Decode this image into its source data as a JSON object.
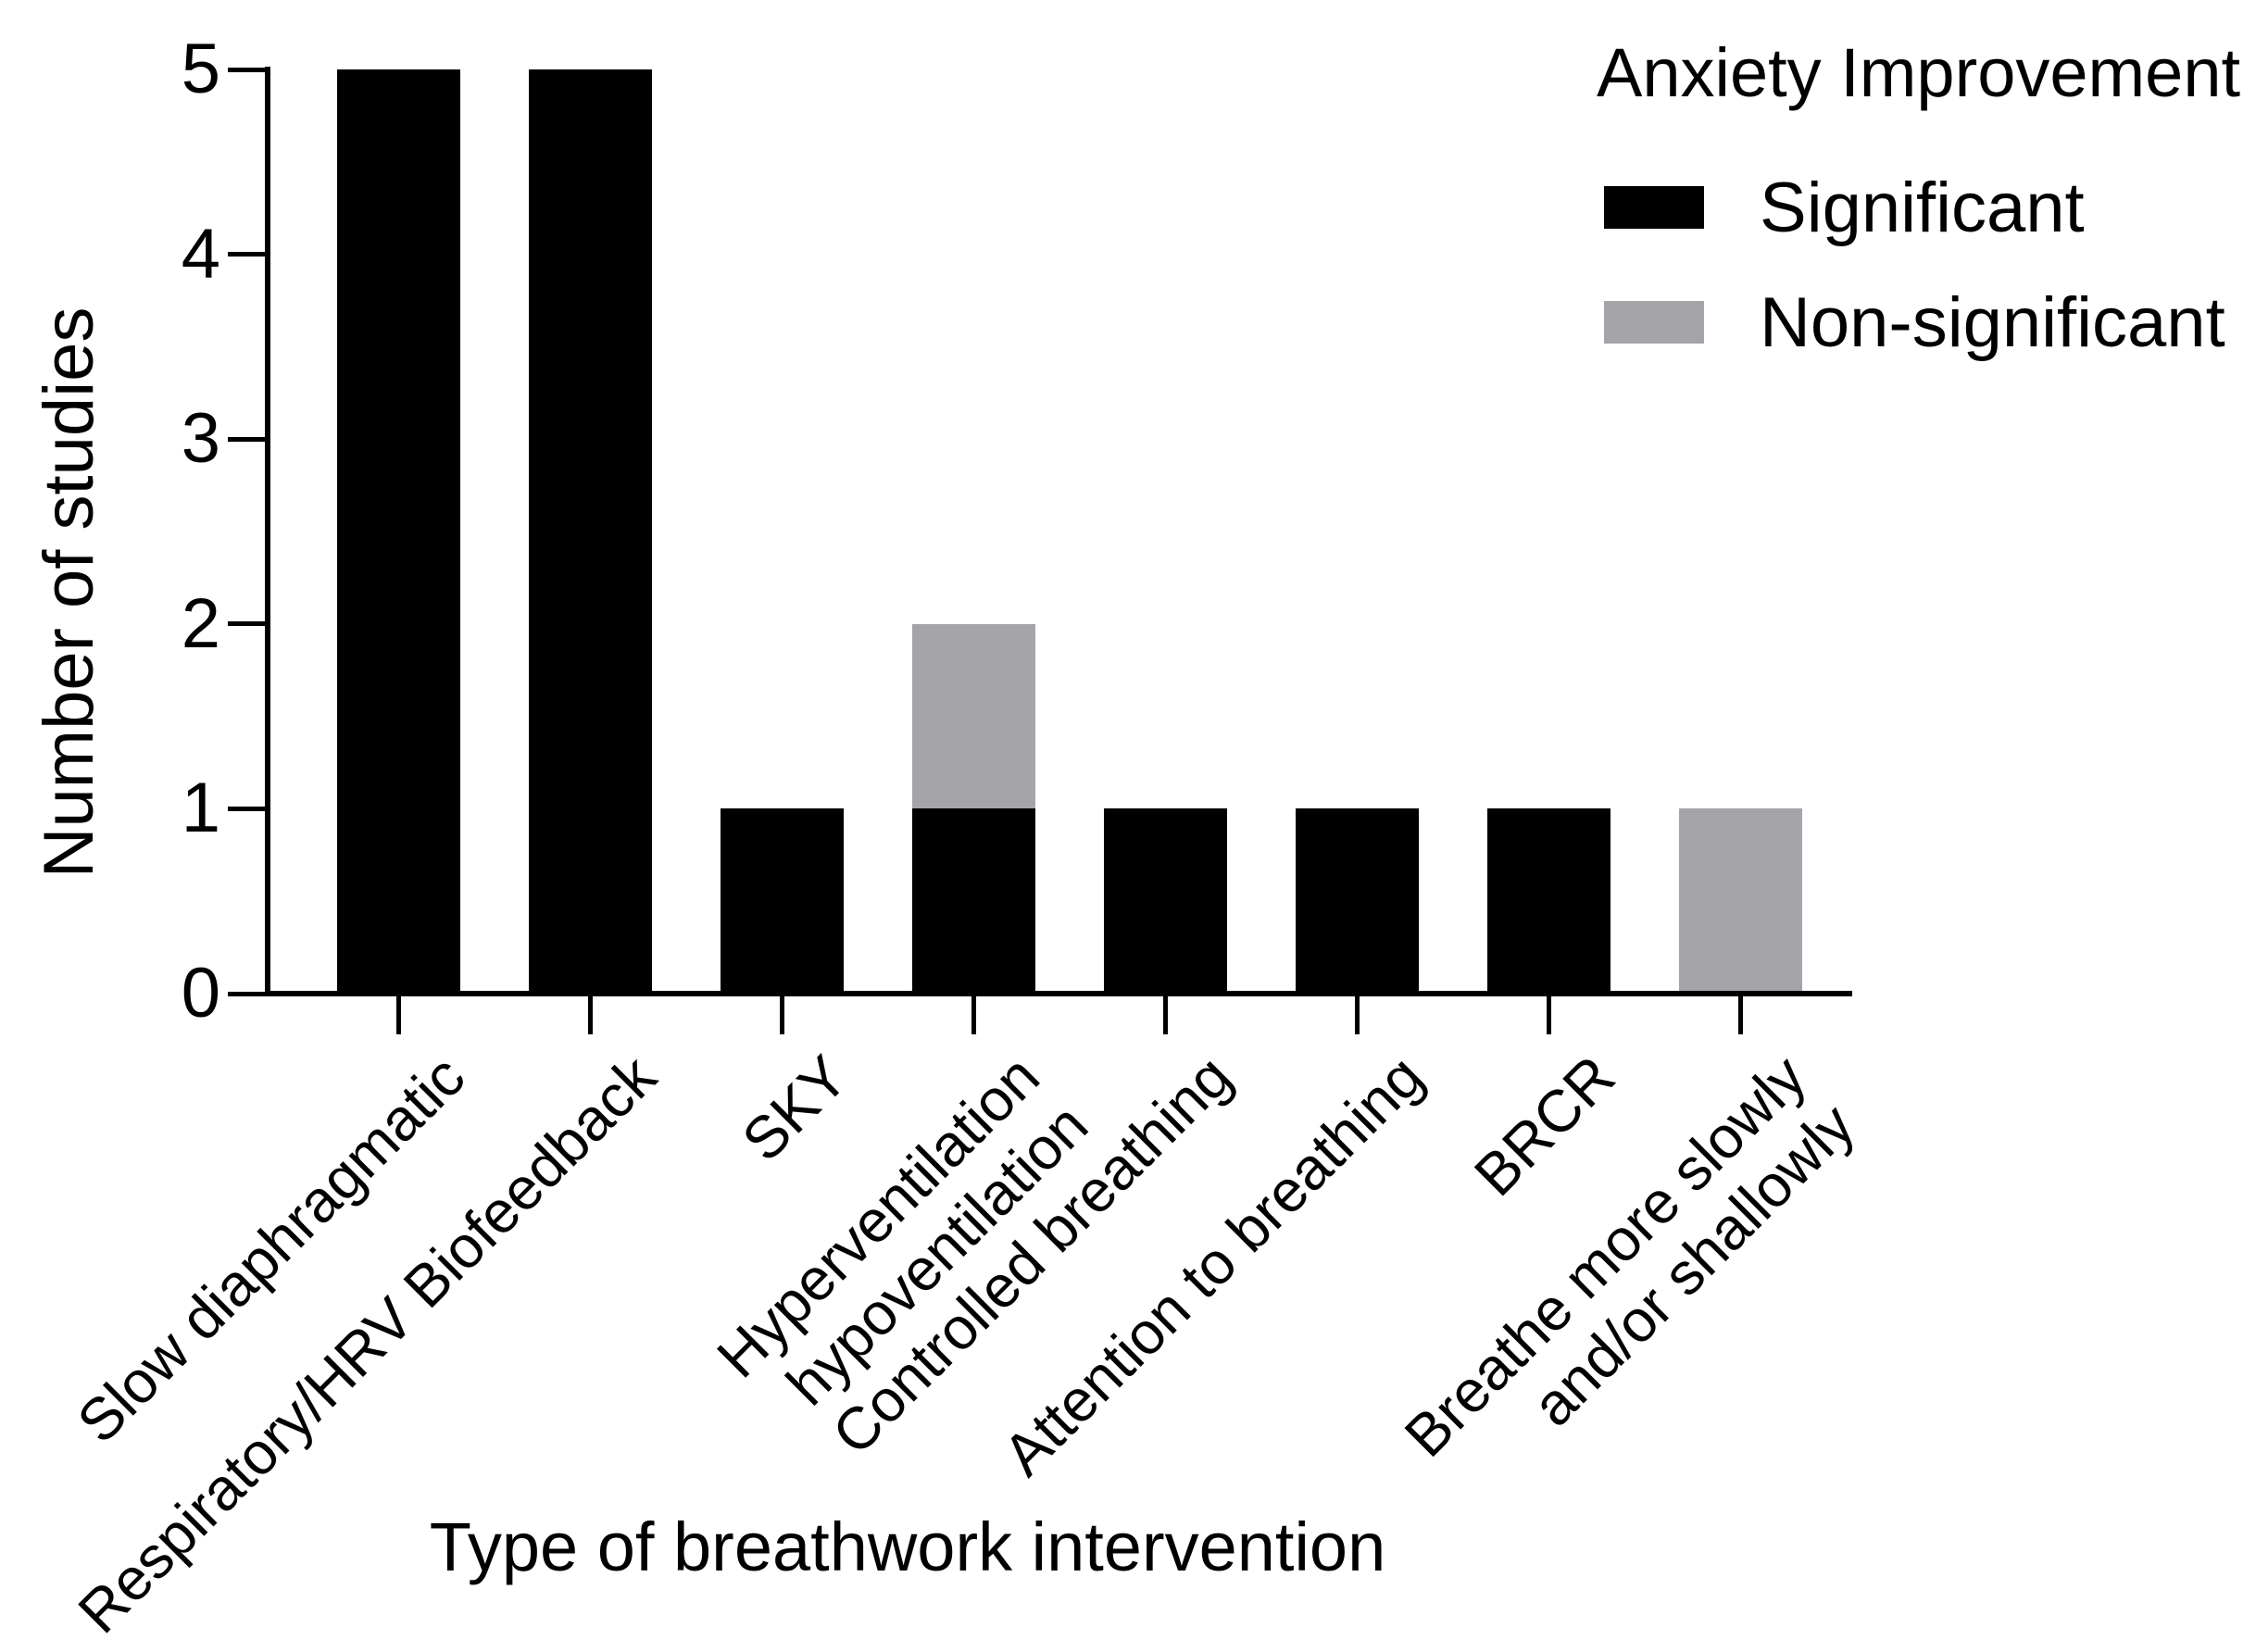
{
  "figure": {
    "background": "#ffffff",
    "axis_color": "#000000",
    "text_color": "#000000"
  },
  "chart_data": {
    "type": "bar",
    "stacked": true,
    "title": "",
    "xlabel": "Type of breathwork intervention",
    "ylabel": "Number of studies",
    "ylim": [
      0,
      5
    ],
    "yticks": [
      0,
      1,
      2,
      3,
      4,
      5
    ],
    "grid": false,
    "legend": {
      "title": "Anxiety Improvement",
      "position": "top-right"
    },
    "categories": [
      "Slow diaphragmatic",
      "Respiratory/HRV Biofeedback",
      "SKY",
      "Hyperventilation\nhypoventilation",
      "Controlled breathing",
      "Attention to breathing",
      "BRCR",
      "Breathe more slowly\nand/or shallowly"
    ],
    "series": [
      {
        "name": "Significant",
        "color": "#000000",
        "values": [
          5,
          5,
          1,
          1,
          1,
          1,
          1,
          0
        ]
      },
      {
        "name": "Non-significant",
        "color": "#A5A5A9",
        "values": [
          0,
          0,
          0,
          1,
          0,
          0,
          0,
          1
        ]
      }
    ]
  }
}
